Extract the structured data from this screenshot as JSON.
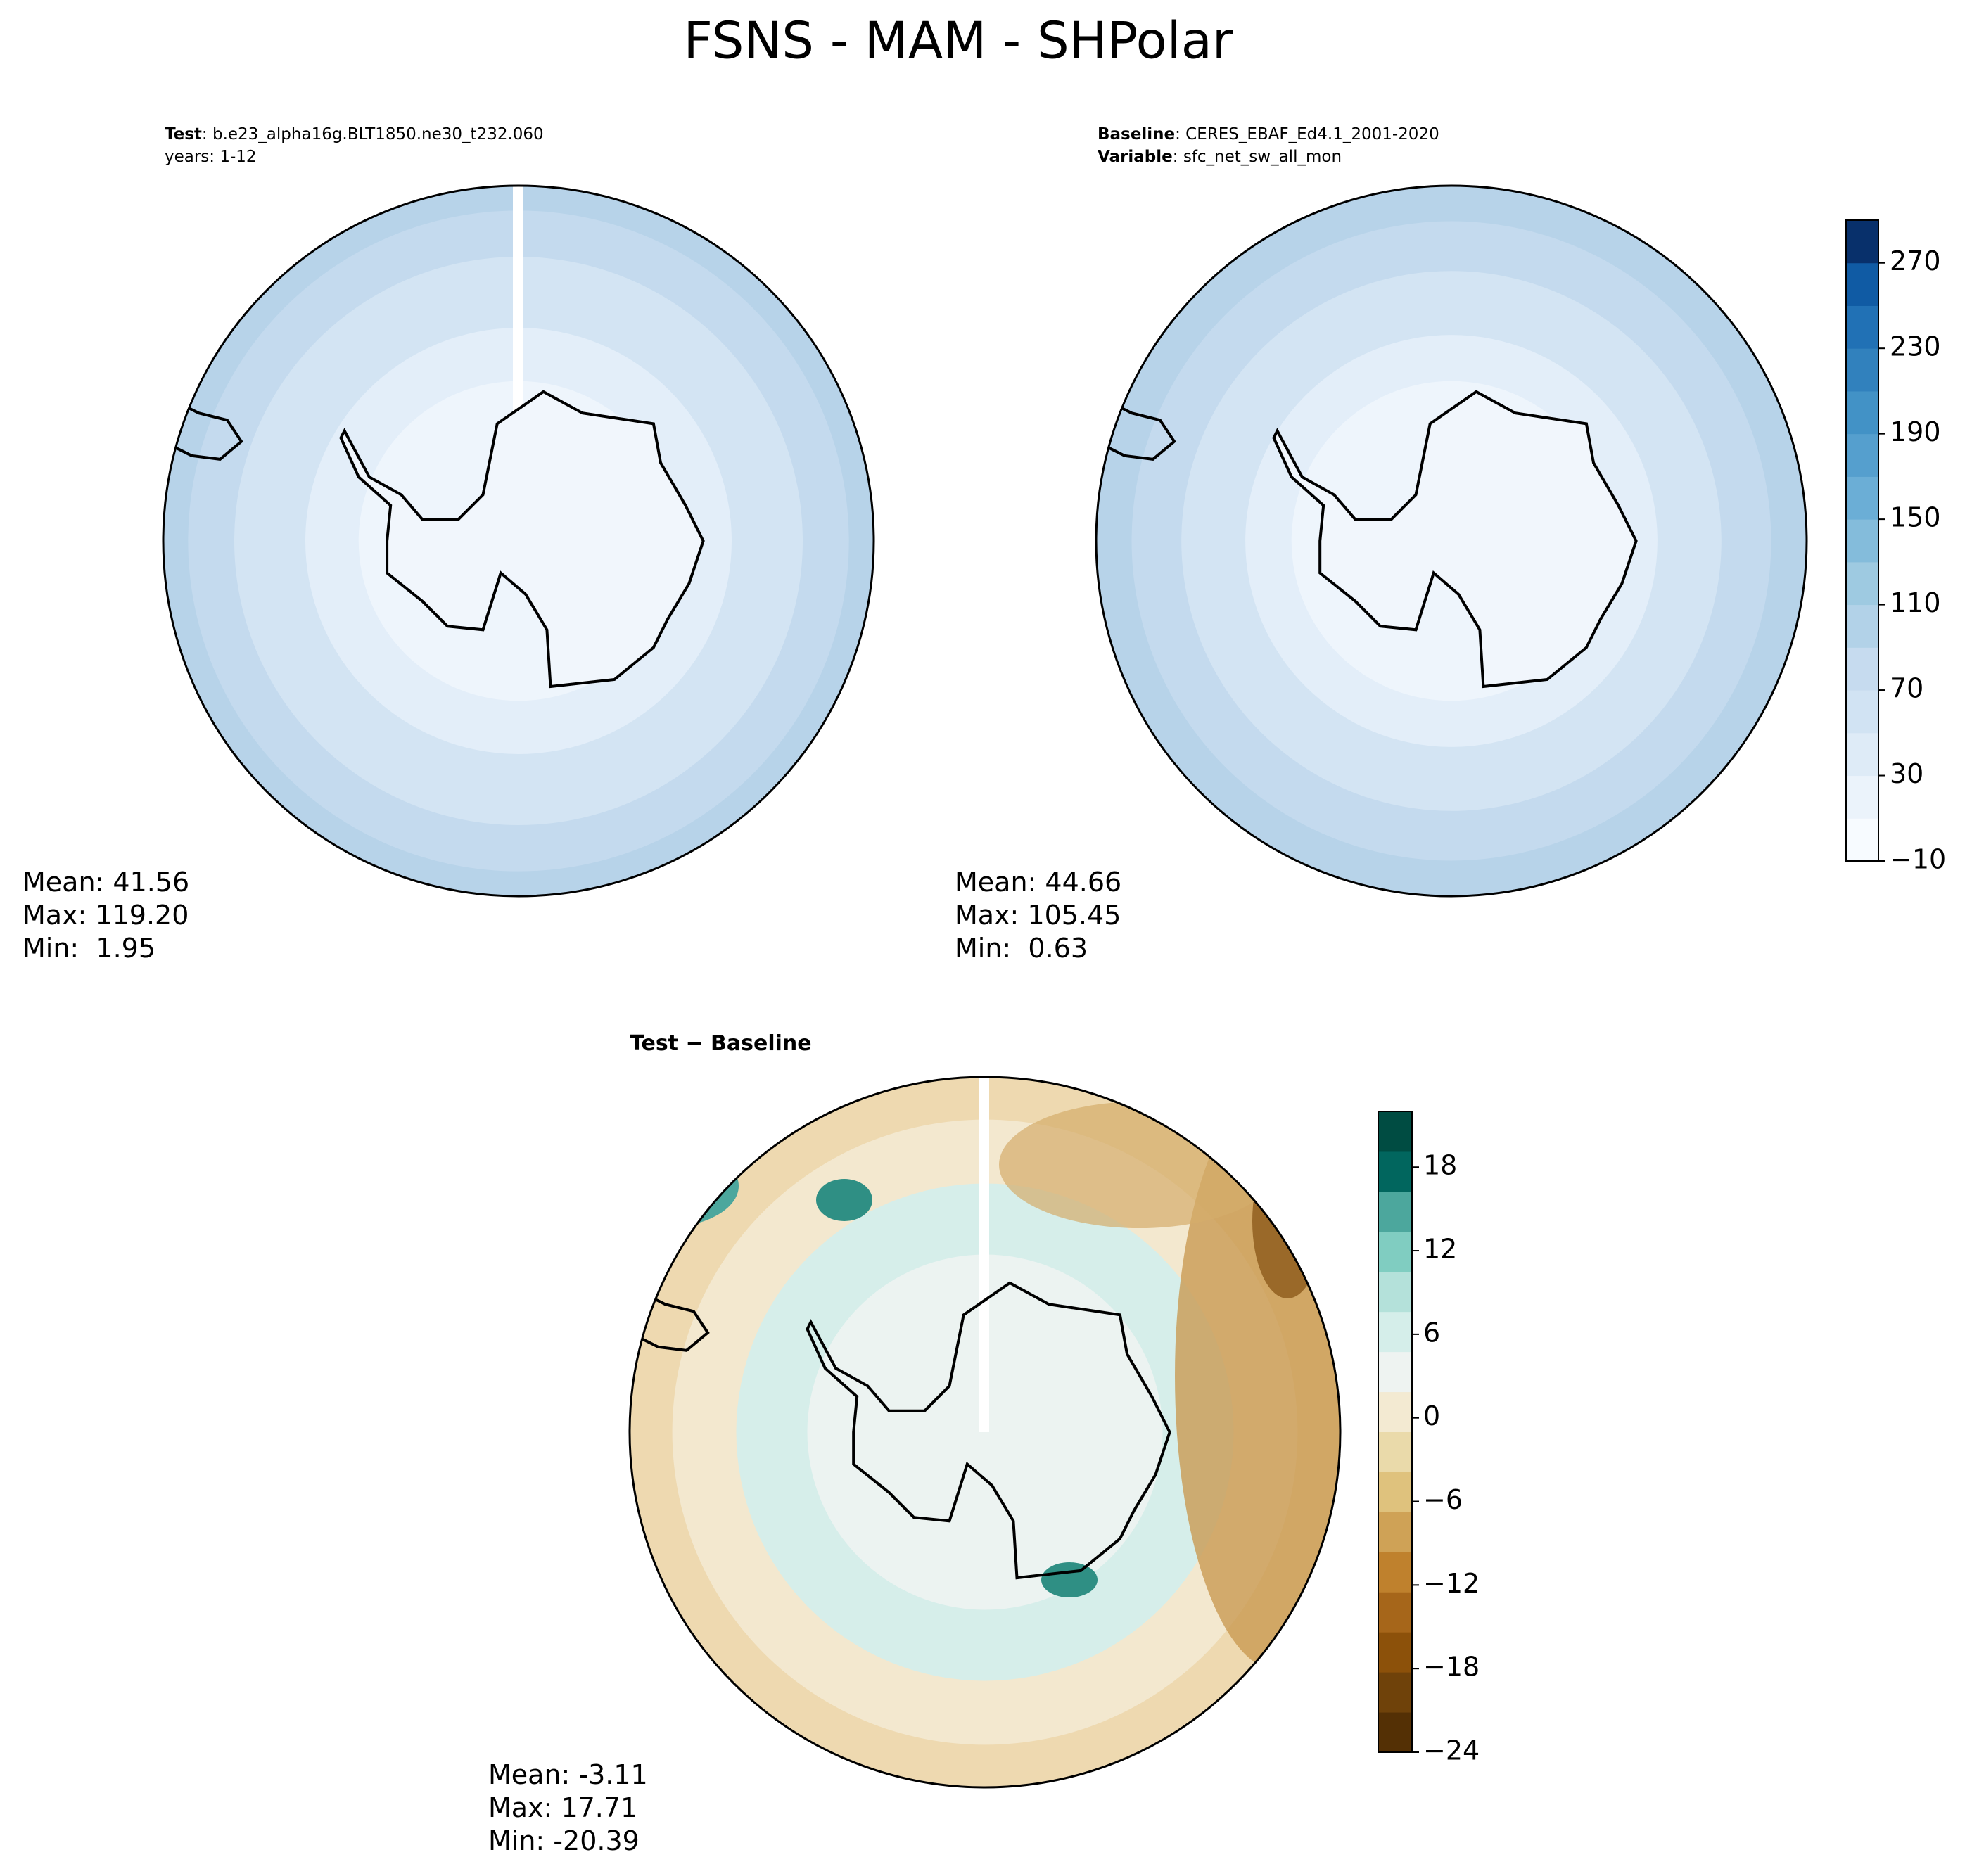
{
  "title": "FSNS - MAM - SHPolar",
  "panels": [
    {
      "header": [
        [
          "Test",
          ": b.e23_alpha16g.BLT1850.ne30_t232.060"
        ],
        [
          "",
          "years: 1-12"
        ]
      ],
      "stats": [
        "Mean: 41.56",
        "Max: 119.20",
        "Min:  1.95"
      ]
    },
    {
      "header": [
        [
          "Baseline",
          ": CERES_EBAF_Ed4.1_2001-2020"
        ],
        [
          "Variable",
          ": sfc_net_sw_all_mon"
        ]
      ],
      "stats": [
        "Mean: 44.66",
        "Max: 105.45",
        "Min:  0.63"
      ]
    },
    {
      "header": [
        [
          "Test − Baseline",
          ""
        ]
      ],
      "stats": [
        "Mean: -3.11",
        "Max: 17.71",
        "Min: -20.39"
      ]
    }
  ],
  "colorbars": [
    {
      "range": [
        -10,
        290
      ],
      "ticks": [
        {
          "value": -10,
          "label": "−10"
        },
        30,
        70,
        110,
        150,
        190,
        230,
        270
      ],
      "colors": [
        "#f7fbff",
        "#ebf3fb",
        "#deebf7",
        "#d1e3f3",
        "#c6dbef",
        "#b2d2e8",
        "#9ecae1",
        "#84bcdb",
        "#6baed6",
        "#559fce",
        "#4292c6",
        "#3181bd",
        "#2171b5",
        "#105ba4",
        "#08306b"
      ]
    },
    {
      "range": [
        -24,
        22
      ],
      "ticks": [
        {
          "value": -24,
          "label": "−24"
        },
        {
          "value": -18,
          "label": "−18"
        },
        {
          "value": -12,
          "label": "−12"
        },
        {
          "value": -6,
          "label": "−6"
        },
        0,
        6,
        12,
        18
      ],
      "colors": [
        "#543005",
        "#6f420a",
        "#8c510a",
        "#a6661a",
        "#bf812d",
        "#cfa256",
        "#dfc27d",
        "#eadaaa",
        "#f3ead2",
        "#eef3f1",
        "#d5eeea",
        "#b4e1da",
        "#80cdc1",
        "#4ca79d",
        "#01665e",
        "#004c42"
      ]
    }
  ]
}
